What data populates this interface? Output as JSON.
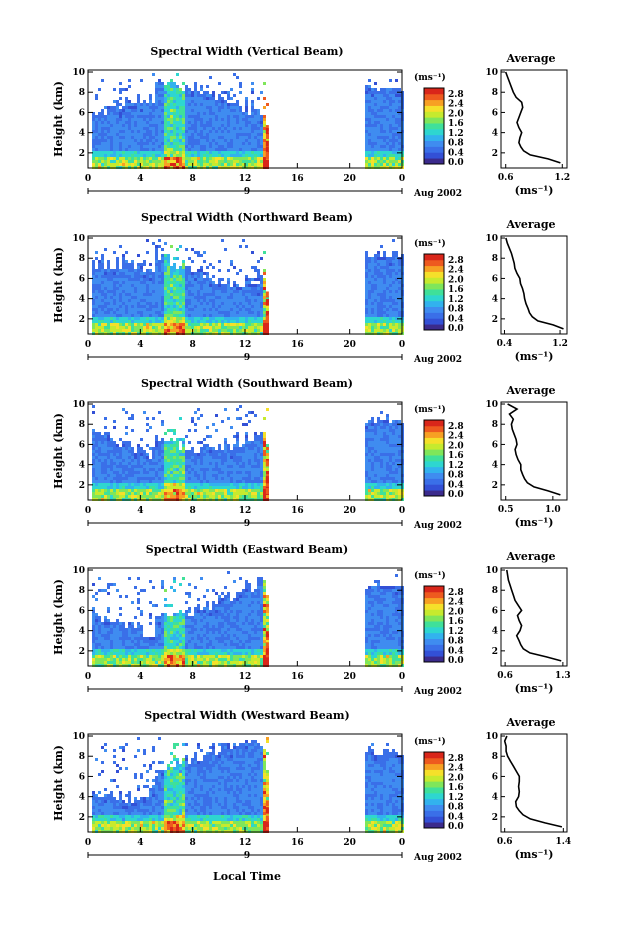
{
  "figure": {
    "x_label": "Local Time",
    "time_ticks": [
      "0",
      "4",
      "8",
      "12",
      "16",
      "20",
      "0"
    ],
    "height_ticks": [
      "2",
      "4",
      "6",
      "8",
      "10"
    ],
    "day_marker": "9",
    "month_label": "Aug 2002",
    "unit": "(ms⁻¹)",
    "colorbar_ticks": [
      "0.0",
      "0.4",
      "0.8",
      "1.2",
      "1.6",
      "2.0",
      "2.4",
      "2.8"
    ],
    "average_title": "Average",
    "colormap": [
      "#3b2a8c",
      "#3350d6",
      "#3a6fe8",
      "#3f8cf0",
      "#32b2ee",
      "#2ed6d0",
      "#3fe09a",
      "#7fe65a",
      "#c6ea2e",
      "#f5e02a",
      "#f7a023",
      "#ee5a1f",
      "#d9261a"
    ]
  },
  "chart_data": [
    {
      "type": "heatmap",
      "title": "Spectral Width (Vertical Beam)",
      "xlabel": "",
      "ylabel": "Height (km)",
      "x_range": [
        0,
        24
      ],
      "y_range": [
        0.5,
        10.2
      ],
      "data_gap_hours": [
        13.9,
        21.0
      ],
      "z_range": [
        0.0,
        2.8
      ],
      "average_profile": {
        "xticks": [
          "0.6",
          "1.2"
        ],
        "xlim": [
          0.55,
          1.25
        ],
        "height": [
          1.0,
          1.4,
          1.8,
          2.2,
          2.6,
          3.0,
          3.5,
          4.0,
          4.5,
          5.0,
          5.5,
          6.0,
          6.5,
          7.0,
          7.5,
          8.0,
          8.5,
          9.0,
          9.5,
          10.0
        ],
        "value": [
          1.18,
          1.05,
          0.86,
          0.79,
          0.76,
          0.74,
          0.75,
          0.77,
          0.74,
          0.72,
          0.74,
          0.76,
          0.78,
          0.77,
          0.71,
          0.68,
          0.66,
          0.64,
          0.62,
          0.6
        ]
      }
    },
    {
      "type": "heatmap",
      "title": "Spectral Width (Northward Beam)",
      "xlabel": "",
      "ylabel": "Height (km)",
      "x_range": [
        0,
        24
      ],
      "y_range": [
        0.5,
        10.2
      ],
      "data_gap_hours": [
        13.9,
        21.0
      ],
      "z_range": [
        0.0,
        2.8
      ],
      "average_profile": {
        "xticks": [
          "0.4",
          "1.2"
        ],
        "xlim": [
          0.35,
          1.3
        ],
        "height": [
          1.0,
          1.4,
          1.8,
          2.2,
          2.6,
          3.0,
          3.5,
          4.0,
          4.5,
          5.0,
          5.5,
          6.0,
          6.5,
          7.0,
          7.5,
          8.0,
          8.5,
          9.0,
          9.5,
          10.0
        ],
        "value": [
          1.25,
          1.1,
          0.88,
          0.8,
          0.76,
          0.74,
          0.71,
          0.69,
          0.68,
          0.66,
          0.63,
          0.62,
          0.58,
          0.55,
          0.54,
          0.52,
          0.5,
          0.47,
          0.44,
          0.42
        ]
      }
    },
    {
      "type": "heatmap",
      "title": "Spectral Width (Southward Beam)",
      "xlabel": "",
      "ylabel": "Height (km)",
      "x_range": [
        0,
        24
      ],
      "y_range": [
        0.5,
        10.2
      ],
      "data_gap_hours": [
        13.9,
        21.0
      ],
      "z_range": [
        0.0,
        2.8
      ],
      "average_profile": {
        "xticks": [
          "0.5",
          "1.0"
        ],
        "xlim": [
          0.45,
          1.15
        ],
        "height": [
          1.0,
          1.4,
          1.8,
          2.2,
          2.6,
          3.0,
          3.5,
          4.0,
          4.5,
          5.0,
          5.5,
          6.0,
          6.5,
          7.0,
          7.5,
          8.0,
          8.5,
          9.0,
          9.5,
          10.0
        ],
        "value": [
          1.08,
          0.95,
          0.8,
          0.73,
          0.7,
          0.68,
          0.66,
          0.66,
          0.63,
          0.61,
          0.6,
          0.62,
          0.61,
          0.59,
          0.57,
          0.56,
          0.58,
          0.54,
          0.62,
          0.52
        ]
      }
    },
    {
      "type": "heatmap",
      "title": "Spectral Width (Eastward Beam)",
      "xlabel": "",
      "ylabel": "Height (km)",
      "x_range": [
        0,
        24
      ],
      "y_range": [
        0.5,
        10.2
      ],
      "data_gap_hours": [
        13.9,
        21.0
      ],
      "z_range": [
        0.0,
        2.8
      ],
      "average_profile": {
        "xticks": [
          "0.6",
          "1.3"
        ],
        "xlim": [
          0.55,
          1.35
        ],
        "height": [
          1.0,
          1.4,
          1.8,
          2.2,
          2.6,
          3.0,
          3.5,
          4.0,
          4.5,
          5.0,
          5.5,
          6.0,
          6.5,
          7.0,
          7.5,
          8.0,
          8.5,
          9.0,
          9.5,
          10.0
        ],
        "value": [
          1.28,
          1.1,
          0.9,
          0.82,
          0.79,
          0.77,
          0.74,
          0.78,
          0.8,
          0.77,
          0.75,
          0.8,
          0.76,
          0.72,
          0.7,
          0.68,
          0.66,
          0.64,
          0.63,
          0.62
        ]
      }
    },
    {
      "type": "heatmap",
      "title": "Spectral Width (Westward Beam)",
      "xlabel": "Local Time",
      "ylabel": "Height (km)",
      "x_range": [
        0,
        24
      ],
      "y_range": [
        0.5,
        10.2
      ],
      "data_gap_hours": [
        13.9,
        21.0
      ],
      "z_range": [
        0.0,
        2.8
      ],
      "average_profile": {
        "xticks": [
          "0.6",
          "1.4"
        ],
        "xlim": [
          0.55,
          1.45
        ],
        "height": [
          1.0,
          1.4,
          1.8,
          2.2,
          2.6,
          3.0,
          3.5,
          4.0,
          4.5,
          5.0,
          5.5,
          6.0,
          6.5,
          7.0,
          7.5,
          8.0,
          8.5,
          9.0,
          9.5,
          10.0
        ],
        "value": [
          1.38,
          1.15,
          0.95,
          0.85,
          0.8,
          0.76,
          0.75,
          0.79,
          0.8,
          0.79,
          0.8,
          0.8,
          0.76,
          0.72,
          0.68,
          0.64,
          0.62,
          0.62,
          0.6,
          0.63
        ]
      }
    }
  ]
}
